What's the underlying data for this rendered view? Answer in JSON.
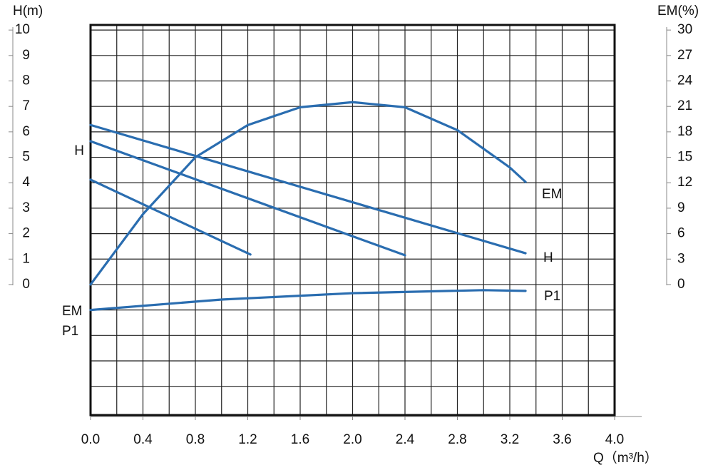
{
  "chart_data": {
    "type": "line",
    "xlabel": "Q（m³/h）",
    "ylabel": "H(m)",
    "y2label": "EM(%)",
    "xlim": [
      0,
      4.0
    ],
    "xticks": [
      {
        "value": 0,
        "label": "0.0"
      },
      0.4,
      0.8,
      1.2,
      1.6,
      {
        "value": 2,
        "label": "2.0"
      },
      2.4,
      2.8,
      3.2,
      3.6,
      {
        "value": 4,
        "label": "4.0"
      }
    ],
    "xgrid": [
      0.2,
      0.4,
      0.6,
      0.8,
      1.0,
      1.2,
      1.4,
      1.6,
      1.8,
      2.0,
      2.2,
      2.4,
      2.6,
      2.8,
      3.0,
      3.2,
      3.4,
      3.6,
      3.8
    ],
    "ylim": [
      -5.13,
      10.2
    ],
    "yticks": [
      0,
      1,
      2,
      3,
      4,
      5,
      6,
      7,
      8,
      9,
      10
    ],
    "ygrid": [
      -4,
      -3,
      -2,
      -1,
      0,
      1,
      2,
      3,
      4,
      5,
      6,
      7,
      8,
      9,
      10
    ],
    "y2lim": [
      -15.39,
      30.6
    ],
    "y2ticks": [
      0,
      3,
      6,
      9,
      12,
      15,
      18,
      21,
      24,
      27,
      30
    ],
    "grid": true,
    "series": [
      {
        "color": "#2a6db0",
        "x": [
          0,
          3.32
        ],
        "values": [
          6.27,
          1.23
        ]
      },
      {
        "color": "#2a6db0",
        "x": [
          0,
          2.4
        ],
        "values": [
          5.63,
          1.15
        ]
      },
      {
        "color": "#2a6db0",
        "x": [
          0,
          1.22
        ],
        "values": [
          4.12,
          1.18
        ]
      },
      {
        "color": "#2a6db0",
        "axis": "y2",
        "x": [
          0,
          0.4,
          0.8,
          1.2,
          1.6,
          2.0,
          2.4,
          2.8,
          3.2,
          3.32
        ],
        "values": [
          0,
          8.3,
          15,
          18.8,
          20.9,
          21.5,
          20.9,
          18.2,
          13.8,
          12.1
        ]
      },
      {
        "color": "#2a6db0",
        "x": [
          0,
          1.0,
          2.0,
          3.0,
          3.32
        ],
        "values": [
          -1.0,
          -0.59,
          -0.34,
          -0.22,
          -0.25
        ]
      }
    ],
    "annotations": [
      "H",
      "H",
      "EM",
      "P1",
      "EM",
      "P1"
    ]
  }
}
